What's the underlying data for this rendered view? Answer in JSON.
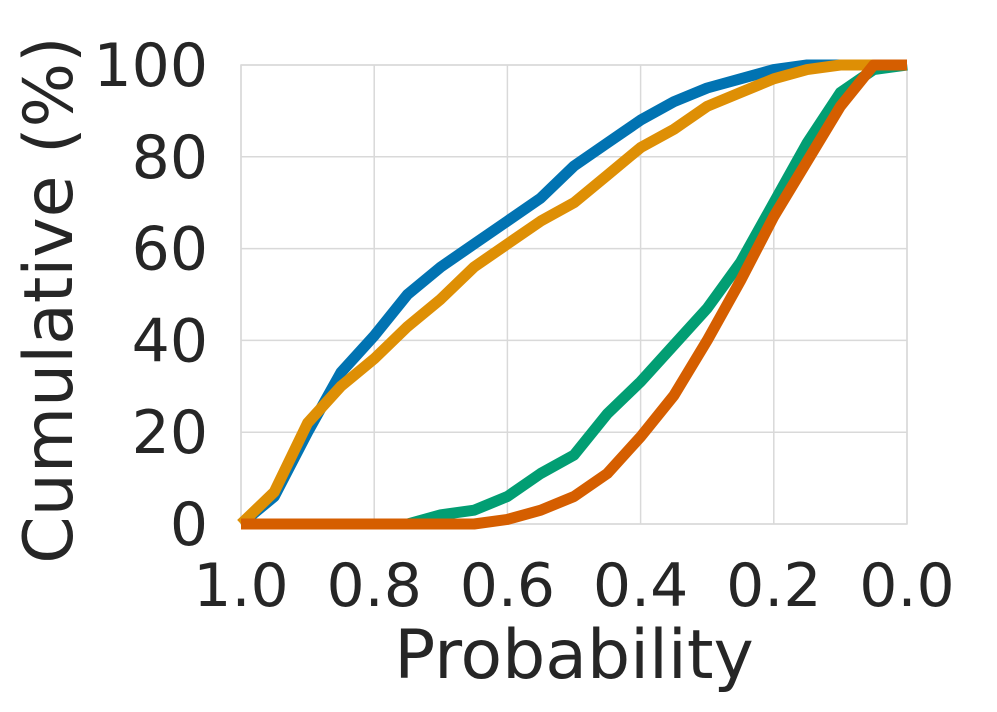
{
  "chart_data": {
    "type": "line",
    "title": "",
    "xlabel": "Probability",
    "ylabel": "Cumulative (%)",
    "xlim": [
      1.0,
      0.0
    ],
    "ylim": [
      0,
      100
    ],
    "x_reversed": true,
    "x_ticks": [
      1.0,
      0.8,
      0.6,
      0.4,
      0.2,
      0.0
    ],
    "x_tick_labels": [
      "1.0",
      "0.8",
      "0.6",
      "0.4",
      "0.2",
      "0.0"
    ],
    "y_ticks": [
      0,
      20,
      40,
      60,
      80,
      100
    ],
    "y_tick_labels": [
      "0",
      "20",
      "40",
      "60",
      "80",
      "100"
    ],
    "grid": true,
    "x": [
      1.0,
      0.95,
      0.9,
      0.85,
      0.8,
      0.75,
      0.7,
      0.65,
      0.6,
      0.55,
      0.5,
      0.45,
      0.4,
      0.35,
      0.3,
      0.25,
      0.2,
      0.15,
      0.1,
      0.05,
      0.0
    ],
    "series": [
      {
        "color": "#0173b2",
        "values": [
          0,
          6,
          20,
          33,
          41,
          50,
          56,
          61,
          66,
          71,
          78,
          83,
          88,
          92,
          95,
          97,
          99,
          100,
          100,
          100,
          100
        ]
      },
      {
        "color": "#de8f05",
        "values": [
          0,
          7,
          22,
          30,
          36,
          43,
          49,
          56,
          61,
          66,
          70,
          76,
          82,
          86,
          91,
          94,
          97,
          99,
          100,
          100,
          100
        ]
      },
      {
        "color": "#029e73",
        "values": [
          0,
          0,
          0,
          0,
          0,
          0,
          2,
          3,
          6,
          11,
          15,
          24,
          31,
          39,
          47,
          57,
          70,
          83,
          94,
          99,
          100
        ]
      },
      {
        "color": "#d55e00",
        "values": [
          0,
          0,
          0,
          0,
          0,
          0,
          0,
          0,
          1,
          3,
          6,
          11,
          19,
          28,
          40,
          53,
          67,
          79,
          91,
          100,
          100
        ]
      }
    ]
  }
}
